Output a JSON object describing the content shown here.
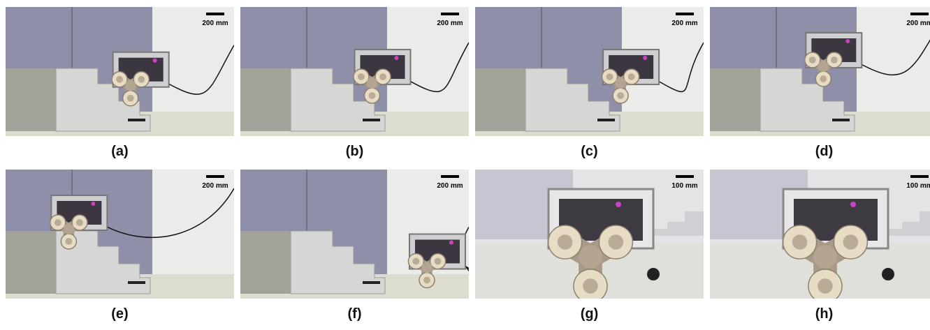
{
  "panels": [
    {
      "label": "(a)",
      "scale": "200 mm"
    },
    {
      "label": "(b)",
      "scale": "200 mm"
    },
    {
      "label": "(c)",
      "scale": "200 mm"
    },
    {
      "label": "(d)",
      "scale": "200 mm"
    },
    {
      "label": "(e)",
      "scale": "200 mm"
    },
    {
      "label": "(f)",
      "scale": "200 mm"
    },
    {
      "label": "(g)",
      "scale": "100 mm"
    },
    {
      "label": "(h)",
      "scale": "100 mm"
    }
  ]
}
